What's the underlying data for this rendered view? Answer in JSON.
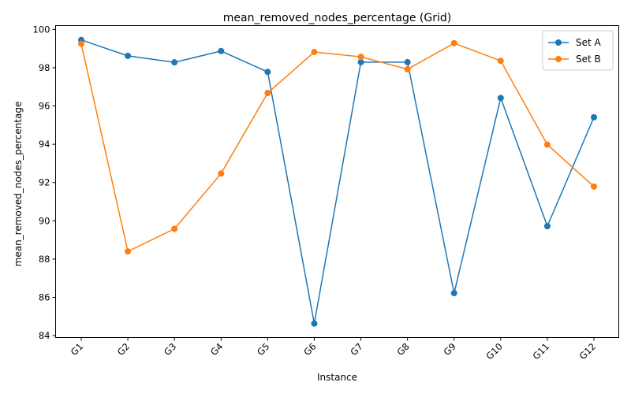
{
  "chart_data": {
    "type": "line",
    "title": "mean_removed_nodes_percentage  (Grid)",
    "xlabel": "Instance",
    "ylabel": "mean_removed_nodes_percentage",
    "categories": [
      "G1",
      "G2",
      "G3",
      "G4",
      "G5",
      "G6",
      "G7",
      "G8",
      "G9",
      "G10",
      "G11",
      "G12"
    ],
    "ylim": [
      83.9,
      100.2
    ],
    "yticks": [
      84,
      86,
      88,
      90,
      92,
      94,
      96,
      98,
      100
    ],
    "grid": false,
    "legend_position": "top-right",
    "series": [
      {
        "name": "Set A",
        "color": "#1f77b4",
        "marker": "circle",
        "values": [
          99.45,
          98.62,
          98.28,
          98.87,
          97.78,
          84.63,
          98.29,
          98.29,
          86.22,
          96.42,
          89.72,
          95.41
        ]
      },
      {
        "name": "Set B",
        "color": "#ff7f0e",
        "marker": "circle",
        "values": [
          99.25,
          88.4,
          89.58,
          92.47,
          96.68,
          98.82,
          98.57,
          97.92,
          99.28,
          98.36,
          93.98,
          91.79
        ]
      }
    ]
  }
}
